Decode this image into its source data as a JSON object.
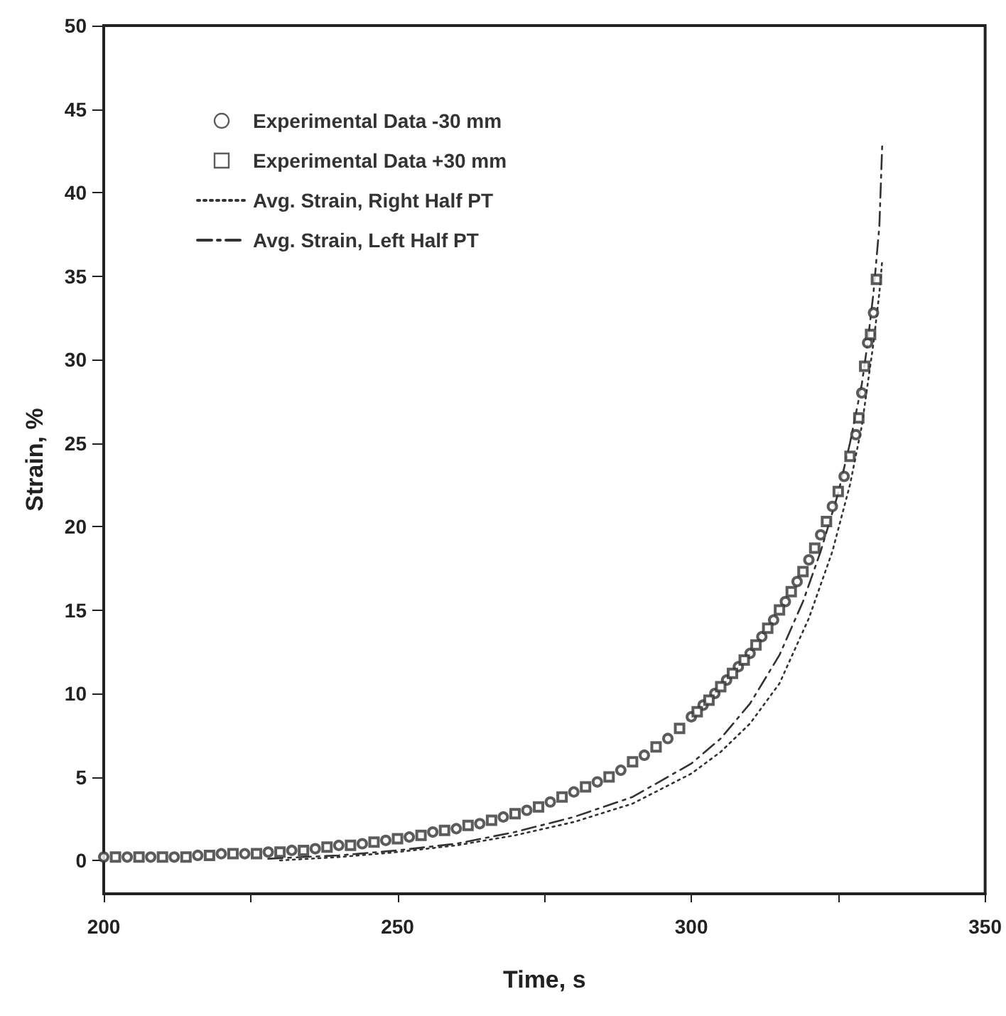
{
  "chart_data": {
    "type": "scatter",
    "xlabel": "Time, s",
    "ylabel": "Strain, %",
    "xlim": [
      200,
      350
    ],
    "xticks": [
      200,
      {
        "value": 225,
        "label": null
      },
      250,
      {
        "value": 275,
        "label": null
      },
      300,
      {
        "value": 325,
        "label": null
      },
      350
    ],
    "ylim": [
      -2,
      50
    ],
    "yticks": [
      0,
      5,
      10,
      15,
      20,
      25,
      30,
      35,
      40,
      45,
      50
    ],
    "grid": false,
    "legend": "top left",
    "series": [
      {
        "name": "Experimental Data -30 mm",
        "marker": "circle",
        "color": "#333333",
        "x": [
          200,
          204,
          208,
          212,
          216,
          220,
          224,
          228,
          232,
          236,
          240,
          244,
          248,
          252,
          256,
          260,
          264,
          268,
          272,
          276,
          280,
          284,
          288,
          292,
          296,
          300,
          302,
          304,
          306,
          308,
          310,
          312,
          314,
          316,
          318,
          320,
          322,
          324,
          326,
          328,
          329,
          330,
          331
        ],
        "values": [
          0.2,
          0.2,
          0.2,
          0.2,
          0.3,
          0.4,
          0.4,
          0.5,
          0.6,
          0.7,
          0.9,
          1.0,
          1.2,
          1.4,
          1.7,
          1.9,
          2.2,
          2.6,
          3.0,
          3.5,
          4.1,
          4.7,
          5.4,
          6.3,
          7.3,
          8.6,
          9.3,
          10.0,
          10.8,
          11.6,
          12.4,
          13.4,
          14.4,
          15.5,
          16.7,
          18.0,
          19.5,
          21.2,
          23.0,
          25.5,
          28.0,
          31.0,
          32.8
        ]
      },
      {
        "name": "Experimental Data +30 mm",
        "marker": "square",
        "color": "#333333",
        "x": [
          202,
          206,
          210,
          214,
          218,
          222,
          226,
          230,
          234,
          238,
          242,
          246,
          250,
          254,
          258,
          262,
          266,
          270,
          274,
          278,
          282,
          286,
          290,
          294,
          298,
          301,
          303,
          305,
          307,
          309,
          311,
          313,
          315,
          317,
          319,
          321,
          323,
          325,
          327,
          328.5,
          329.5,
          330.5,
          331.5
        ],
        "values": [
          0.2,
          0.2,
          0.2,
          0.2,
          0.3,
          0.4,
          0.4,
          0.5,
          0.6,
          0.8,
          0.9,
          1.1,
          1.3,
          1.5,
          1.8,
          2.1,
          2.4,
          2.8,
          3.2,
          3.8,
          4.4,
          5.0,
          5.9,
          6.8,
          7.9,
          8.9,
          9.6,
          10.4,
          11.2,
          12.0,
          12.9,
          13.9,
          15.0,
          16.1,
          17.3,
          18.7,
          20.3,
          22.1,
          24.2,
          26.5,
          29.6,
          31.5,
          34.8
        ]
      },
      {
        "name": "Avg. Strain, Right Half PT",
        "type": "line",
        "marker": "none",
        "line_style": "dotted",
        "color": "#333333",
        "x": [
          230,
          240,
          250,
          260,
          270,
          280,
          290,
          300,
          305,
          310,
          315,
          320,
          324,
          327,
          329,
          330,
          331,
          332,
          332.5
        ],
        "values": [
          0.0,
          0.2,
          0.5,
          0.9,
          1.5,
          2.3,
          3.4,
          5.2,
          6.5,
          8.2,
          10.6,
          14.5,
          18.5,
          22.5,
          26,
          28.5,
          31,
          34,
          36
        ]
      },
      {
        "name": "Avg. Strain, Left Half PT",
        "type": "line",
        "marker": "none",
        "line_style": "dashdot",
        "color": "#333333",
        "x": [
          228,
          240,
          250,
          260,
          270,
          280,
          290,
          300,
          305,
          310,
          315,
          319,
          322,
          325,
          327,
          329,
          330,
          331,
          332,
          332.5
        ],
        "values": [
          0.1,
          0.3,
          0.6,
          1.0,
          1.7,
          2.6,
          3.8,
          5.8,
          7.3,
          9.4,
          12.3,
          15.5,
          18.5,
          22,
          25,
          28.5,
          31,
          34,
          38,
          43
        ]
      }
    ]
  }
}
